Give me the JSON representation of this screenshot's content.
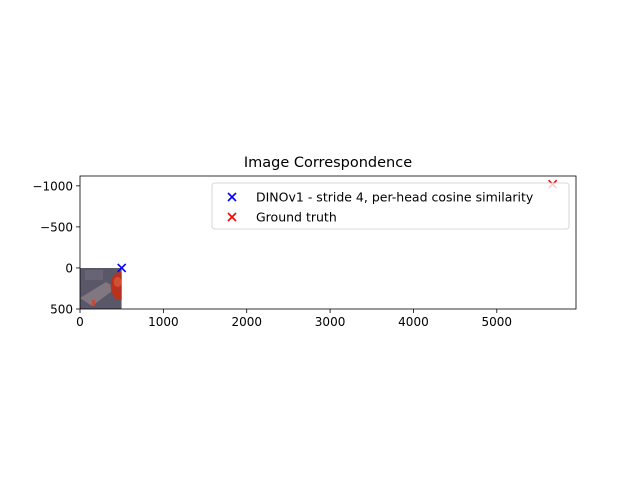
{
  "chart_data": {
    "type": "scatter",
    "title": "Image Correspondence",
    "xlabel": "",
    "ylabel": "",
    "xlim": [
      0,
      5950
    ],
    "ylim": [
      500,
      -1120
    ],
    "y_axis_inverted": true,
    "x_ticks": [
      0,
      1000,
      2000,
      3000,
      4000,
      5000
    ],
    "x_tick_labels": [
      "0",
      "1000",
      "2000",
      "3000",
      "4000",
      "5000"
    ],
    "y_ticks": [
      -1000,
      -500,
      0,
      500
    ],
    "y_tick_labels": [
      "−1000",
      "−500",
      "0",
      "500"
    ],
    "grid": false,
    "legend_position": "top-right",
    "background_image": {
      "description": "thumbnail photo (red object) drawn over data range",
      "x_range": [
        0,
        500
      ],
      "y_range": [
        0,
        500
      ]
    },
    "series": [
      {
        "name": "DINOv1 - stride 4, per-head cosine similarity",
        "marker": "x",
        "color": "#0000ff",
        "x": [
          500
        ],
        "y": [
          0
        ]
      },
      {
        "name": "Ground truth",
        "marker": "x",
        "color": "#ff0000",
        "x": [
          5670
        ],
        "y": [
          -1020
        ]
      }
    ]
  }
}
